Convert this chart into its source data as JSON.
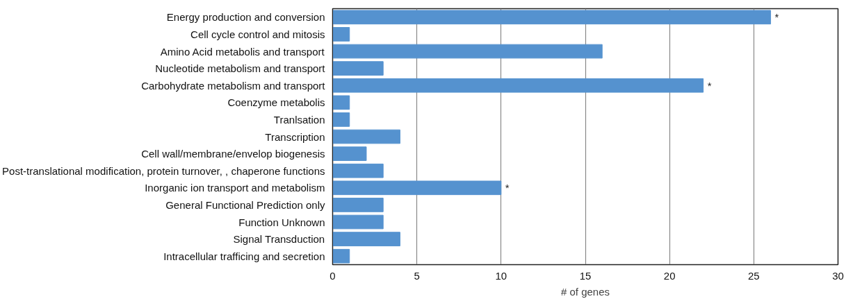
{
  "chart_data": {
    "type": "bar",
    "orientation": "horizontal",
    "xlabel": "# of genes",
    "categories": [
      "Energy production and conversion",
      "Cell cycle control and mitosis",
      "Amino Acid metabolis and transport",
      "Nucleotide metabolism and transport",
      "Carbohydrate metabolism and transport",
      "Coenzyme metabolis",
      "Tranlsation",
      "Transcription",
      "Cell wall/membrane/envelop biogenesis",
      "Post-translational modification, protein turnover, , chaperone functions",
      "Inorganic ion transport and metabolism",
      "General Functional Prediction only",
      "Function Unknown",
      "Signal Transduction",
      "Intracellular trafficing and secretion"
    ],
    "values": [
      26,
      1,
      16,
      3,
      22,
      1,
      1,
      4,
      2,
      3,
      10,
      3,
      3,
      4,
      1
    ],
    "color": "#5592cf",
    "xlim": [
      0,
      30
    ],
    "xticks": [
      0,
      5,
      10,
      15,
      20,
      25,
      30
    ],
    "grid": "x",
    "annotations": [
      {
        "text": "*",
        "x": 26,
        "y": "Energy production and conversion"
      },
      {
        "text": "*",
        "x": 22,
        "y": "Carbohydrate metabolism and transport"
      },
      {
        "text": "*",
        "x": 10,
        "y": "Inorganic ion transport and metabolism"
      }
    ]
  }
}
